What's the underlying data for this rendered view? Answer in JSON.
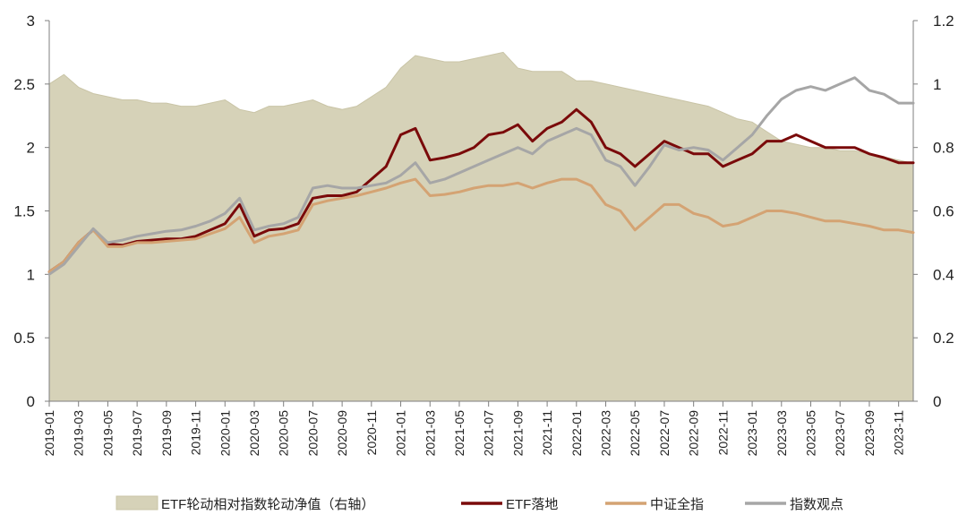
{
  "chart_data": {
    "type": "line",
    "title": "",
    "x_ticks": [
      "2019-01",
      "2019-03",
      "2019-05",
      "2019-07",
      "2019-09",
      "2019-11",
      "2020-01",
      "2020-03",
      "2020-05",
      "2020-07",
      "2020-09",
      "2020-11",
      "2021-01",
      "2021-03",
      "2021-05",
      "2021-07",
      "2021-09",
      "2021-11",
      "2022-01",
      "2022-03",
      "2022-05",
      "2022-07",
      "2022-09",
      "2022-11",
      "2023-01",
      "2023-03",
      "2023-05",
      "2023-07",
      "2023-09",
      "2023-11"
    ],
    "x_range": [
      "2019-01",
      "2023-12"
    ],
    "y_left": {
      "ylim": [
        0,
        3
      ],
      "ticks": [
        "0",
        "0.5",
        "1",
        "1.5",
        "2",
        "2.5",
        "3"
      ]
    },
    "y_right": {
      "ylim": [
        0,
        1.2
      ],
      "ticks": [
        "0",
        "0.2",
        "0.4",
        "0.6",
        "0.8",
        "1",
        "1.2"
      ]
    },
    "grid": false,
    "legend_position": "bottom",
    "x": [
      "2019-01",
      "2019-02",
      "2019-03",
      "2019-04",
      "2019-05",
      "2019-06",
      "2019-07",
      "2019-08",
      "2019-09",
      "2019-10",
      "2019-11",
      "2019-12",
      "2020-01",
      "2020-02",
      "2020-03",
      "2020-04",
      "2020-05",
      "2020-06",
      "2020-07",
      "2020-08",
      "2020-09",
      "2020-10",
      "2020-11",
      "2020-12",
      "2021-01",
      "2021-02",
      "2021-03",
      "2021-04",
      "2021-05",
      "2021-06",
      "2021-07",
      "2021-08",
      "2021-09",
      "2021-10",
      "2021-11",
      "2021-12",
      "2022-01",
      "2022-02",
      "2022-03",
      "2022-04",
      "2022-05",
      "2022-06",
      "2022-07",
      "2022-08",
      "2022-09",
      "2022-10",
      "2022-11",
      "2022-12",
      "2023-01",
      "2023-02",
      "2023-03",
      "2023-04",
      "2023-05",
      "2023-06",
      "2023-07",
      "2023-08",
      "2023-09",
      "2023-10",
      "2023-11",
      "2023-12"
    ],
    "series": [
      {
        "name": "ETF轮动相对指数轮动净值（右轴）",
        "axis": "right",
        "style": "area",
        "color": "#D6D2B8",
        "values": [
          1.0,
          1.03,
          0.99,
          0.97,
          0.96,
          0.95,
          0.95,
          0.94,
          0.94,
          0.93,
          0.93,
          0.94,
          0.95,
          0.92,
          0.91,
          0.93,
          0.93,
          0.94,
          0.95,
          0.93,
          0.92,
          0.93,
          0.96,
          0.99,
          1.05,
          1.09,
          1.08,
          1.07,
          1.07,
          1.08,
          1.09,
          1.1,
          1.05,
          1.04,
          1.04,
          1.04,
          1.01,
          1.01,
          1.0,
          0.99,
          0.98,
          0.97,
          0.96,
          0.95,
          0.94,
          0.93,
          0.91,
          0.89,
          0.88,
          0.85,
          0.82,
          0.81,
          0.8,
          0.8,
          0.79,
          0.79,
          0.78,
          0.77,
          0.76,
          0.75
        ]
      },
      {
        "name": "ETF落地",
        "axis": "left",
        "style": "line",
        "color": "#7A0A0A",
        "values": [
          1.02,
          1.1,
          1.25,
          1.35,
          1.24,
          1.23,
          1.26,
          1.27,
          1.28,
          1.28,
          1.3,
          1.35,
          1.4,
          1.55,
          1.3,
          1.35,
          1.36,
          1.4,
          1.6,
          1.62,
          1.62,
          1.65,
          1.75,
          1.85,
          2.1,
          2.15,
          1.9,
          1.92,
          1.95,
          2.0,
          2.1,
          2.12,
          2.18,
          2.05,
          2.15,
          2.2,
          2.3,
          2.2,
          2.0,
          1.95,
          1.85,
          1.95,
          2.05,
          2.0,
          1.95,
          1.95,
          1.85,
          1.9,
          1.95,
          2.05,
          2.05,
          2.1,
          2.05,
          2.0,
          2.0,
          2.0,
          1.95,
          1.92,
          1.88,
          1.88
        ]
      },
      {
        "name": "中证全指",
        "axis": "left",
        "style": "line",
        "color": "#D4A373",
        "values": [
          1.02,
          1.1,
          1.25,
          1.35,
          1.22,
          1.22,
          1.25,
          1.25,
          1.26,
          1.27,
          1.28,
          1.32,
          1.36,
          1.45,
          1.25,
          1.3,
          1.32,
          1.35,
          1.55,
          1.58,
          1.6,
          1.62,
          1.65,
          1.68,
          1.72,
          1.75,
          1.62,
          1.63,
          1.65,
          1.68,
          1.7,
          1.7,
          1.72,
          1.68,
          1.72,
          1.75,
          1.75,
          1.7,
          1.55,
          1.5,
          1.35,
          1.45,
          1.55,
          1.55,
          1.48,
          1.45,
          1.38,
          1.4,
          1.45,
          1.5,
          1.5,
          1.48,
          1.45,
          1.42,
          1.42,
          1.4,
          1.38,
          1.35,
          1.35,
          1.33
        ]
      },
      {
        "name": "指数观点",
        "axis": "left",
        "style": "line",
        "color": "#A6A6A6",
        "values": [
          1.0,
          1.08,
          1.22,
          1.36,
          1.25,
          1.27,
          1.3,
          1.32,
          1.34,
          1.35,
          1.38,
          1.42,
          1.48,
          1.6,
          1.35,
          1.38,
          1.4,
          1.45,
          1.68,
          1.7,
          1.68,
          1.68,
          1.7,
          1.72,
          1.78,
          1.88,
          1.72,
          1.75,
          1.8,
          1.85,
          1.9,
          1.95,
          2.0,
          1.95,
          2.05,
          2.1,
          2.15,
          2.1,
          1.9,
          1.85,
          1.7,
          1.85,
          2.02,
          1.98,
          2.0,
          1.98,
          1.9,
          2.0,
          2.1,
          2.25,
          2.38,
          2.45,
          2.48,
          2.45,
          2.5,
          2.55,
          2.45,
          2.42,
          2.35,
          2.35
        ]
      }
    ]
  }
}
